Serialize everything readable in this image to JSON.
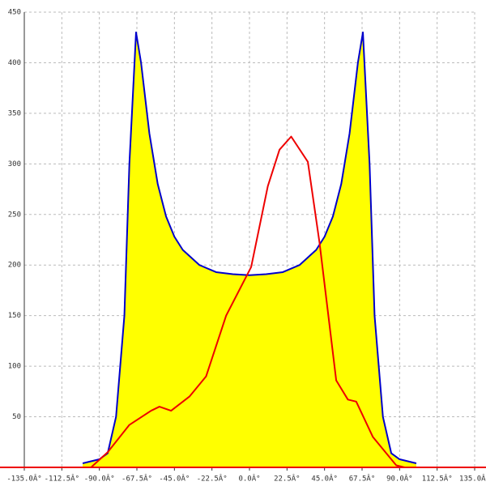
{
  "chart_data": {
    "type": "line",
    "xlim": [
      -135,
      135
    ],
    "ylim": [
      0,
      450
    ],
    "xticks": [
      {
        "value": -135,
        "label": "-135.0Â°"
      },
      {
        "value": -112.5,
        "label": "-112.5Â°"
      },
      {
        "value": -90,
        "label": "-90.0Â°"
      },
      {
        "value": -67.5,
        "label": "-67.5Â°"
      },
      {
        "value": -45,
        "label": "-45.0Â°"
      },
      {
        "value": -22.5,
        "label": "-22.5Â°"
      },
      {
        "value": 0,
        "label": "0.0Â°"
      },
      {
        "value": 22.5,
        "label": "22.5Â°"
      },
      {
        "value": 45,
        "label": "45.0Â°"
      },
      {
        "value": 67.5,
        "label": "67.5Â°"
      },
      {
        "value": 90,
        "label": "90.0Â°"
      },
      {
        "value": 112.5,
        "label": "112.5Â°"
      },
      {
        "value": 135,
        "label": "135.0Â°"
      }
    ],
    "yticks": [
      50,
      100,
      150,
      200,
      250,
      300,
      350,
      400,
      450
    ],
    "grid": true,
    "series": [
      {
        "color": "#0000cc",
        "fill": "#ffff00",
        "x": [
          -100,
          -90,
          -85,
          -80,
          -75,
          -72,
          -68,
          -65,
          -60,
          -55,
          -50,
          -45,
          -40,
          -30,
          -20,
          -10,
          0,
          10,
          20,
          30,
          40,
          45,
          50,
          55,
          60,
          65,
          68,
          72,
          75,
          80,
          85,
          90,
          100
        ],
        "values": [
          4,
          8,
          14,
          50,
          150,
          300,
          430,
          400,
          330,
          280,
          248,
          228,
          215,
          200,
          193,
          191,
          190,
          191,
          193,
          200,
          215,
          228,
          248,
          280,
          330,
          400,
          430,
          300,
          150,
          50,
          14,
          8,
          4
        ]
      },
      {
        "color": "#ee0000",
        "x": [
          -95,
          -85,
          -72,
          -59,
          -54,
          -47,
          -36,
          -26,
          -14,
          1,
          11,
          18,
          25,
          35,
          42,
          52,
          59,
          64,
          74,
          88,
          93
        ],
        "values": [
          0,
          15,
          42,
          56,
          60,
          56,
          70,
          90,
          150,
          198,
          278,
          314,
          327,
          302,
          222,
          86,
          67,
          65,
          30,
          2,
          0
        ]
      }
    ]
  }
}
